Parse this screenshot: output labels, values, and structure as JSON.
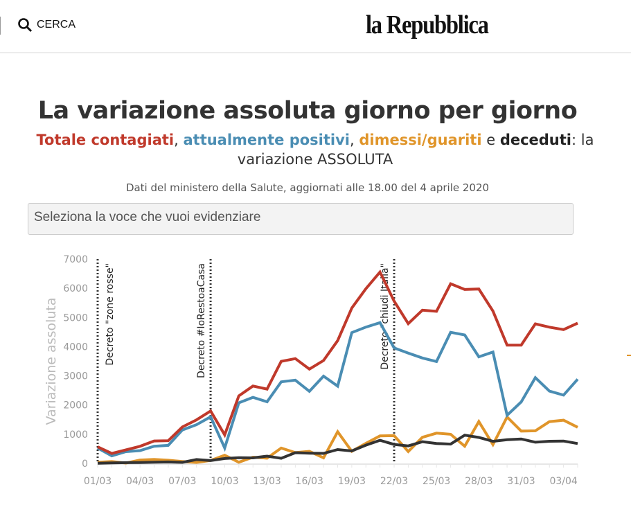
{
  "header": {
    "search_label": "CERCA",
    "search_icon": "search-icon",
    "logo": "la Repubblica"
  },
  "title": "La variazione assoluta giorno per giorno",
  "subtitle": {
    "s1": "Totale contagiati",
    "sep1": ", ",
    "s2": "attualmente positivi",
    "sep2": ", ",
    "s3": "dimessi/guariti",
    "sep3": " e ",
    "s4": "deceduti",
    "tail": ": la variazione ASSOLUTA"
  },
  "source": "Dati del ministero della Salute, aggiornati alle 18.00 del 4 aprile 2020",
  "select": {
    "placeholder": "Seleziona la voce che vuoi evidenziare"
  },
  "chart_data": {
    "type": "line",
    "ylabel": "Variazione assoluta",
    "ylim": [
      0,
      7000
    ],
    "yticks": [
      "0",
      "1000",
      "2000",
      "3000",
      "4000",
      "5000",
      "6000",
      "7000"
    ],
    "x": [
      "01/03",
      "02/03",
      "03/03",
      "04/03",
      "05/03",
      "06/03",
      "07/03",
      "08/03",
      "09/03",
      "10/03",
      "11/03",
      "12/03",
      "13/03",
      "14/03",
      "15/03",
      "16/03",
      "17/03",
      "18/03",
      "19/03",
      "20/03",
      "21/03",
      "22/03",
      "23/03",
      "24/03",
      "25/03",
      "26/03",
      "27/03",
      "28/03",
      "29/03",
      "30/03",
      "31/03",
      "01/04",
      "02/04",
      "03/04",
      "04/04"
    ],
    "xticks": [
      "01/03",
      "04/03",
      "07/03",
      "10/03",
      "13/03",
      "16/03",
      "19/03",
      "22/03",
      "25/03",
      "28/03",
      "31/03",
      "03/04"
    ],
    "grid": false,
    "series": [
      {
        "name": "Totale contagiati",
        "color": "#c0392b",
        "values": [
          566,
          342,
          466,
          587,
          769,
          778,
          1247,
          1492,
          1797,
          977,
          2313,
          2651,
          2547,
          3497,
          3590,
          3233,
          3526,
          4207,
          5322,
          5986,
          6557,
          5560,
          4789,
          5249,
          5210,
          6153,
          5959,
          5974,
          5217,
          4050,
          4053,
          4782,
          4668,
          4585,
          4805
        ]
      },
      {
        "name": "attualmente positivi",
        "color": "#4a8db3",
        "values": [
          528,
          258,
          403,
          438,
          589,
          620,
          1145,
          1326,
          1598,
          529,
          2076,
          2264,
          2113,
          2795,
          2853,
          2470,
          2989,
          2648,
          4480,
          4670,
          4821,
          3957,
          3780,
          3612,
          3491,
          4492,
          4401,
          3651,
          3815,
          1648,
          2107,
          2937,
          2477,
          2339,
          2886
        ]
      },
      {
        "name": "dimessi/guariti",
        "color": "#e0952a",
        "values": [
          37,
          66,
          11,
          116,
          138,
          109,
          66,
          33,
          102,
          280,
          41,
          213,
          181,
          527,
          369,
          414,
          192,
          1084,
          415,
          689,
          943,
          952,
          408,
          894,
          1036,
          999,
          589,
          1434,
          646,
          1590,
          1109,
          1118,
          1431,
          1480,
          1238
        ]
      },
      {
        "name": "deceduti",
        "color": "#333333",
        "values": [
          5,
          18,
          27,
          28,
          41,
          49,
          36,
          133,
          97,
          168,
          196,
          189,
          250,
          175,
          368,
          349,
          345,
          475,
          427,
          627,
          793,
          651,
          601,
          743,
          683,
          662,
          969,
          889,
          756,
          812,
          837,
          727,
          760,
          766,
          681
        ]
      }
    ],
    "annotations": [
      {
        "date": "01/03",
        "label": "Decreto \"zone rosse\"",
        "side": "right"
      },
      {
        "date": "09/03",
        "label": "Decreto #IoRestoaCasa",
        "side": "left"
      },
      {
        "date": "22/03",
        "label": "Decreto \"chiudi Italia\"",
        "side": "left"
      }
    ]
  }
}
